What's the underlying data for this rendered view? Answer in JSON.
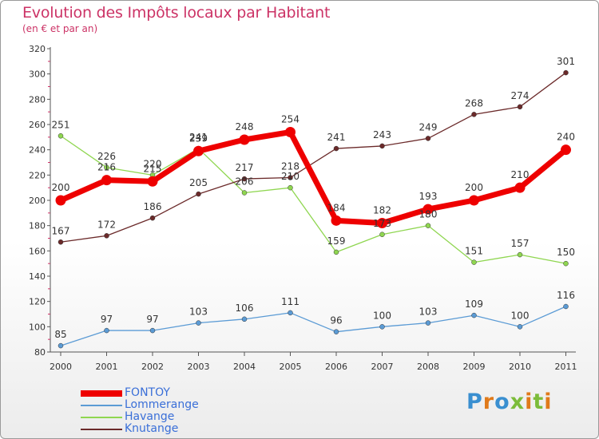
{
  "title": "Evolution des Impôts locaux par Habitant",
  "subtitle": "(en € et par an)",
  "logo": {
    "text": "Proxiti"
  },
  "chart_data": {
    "type": "line",
    "x": [
      "2000",
      "2001",
      "2002",
      "2003",
      "2004",
      "2005",
      "2006",
      "2007",
      "2008",
      "2009",
      "2010",
      "2011"
    ],
    "ylim": [
      80,
      320
    ],
    "yticks": [
      80,
      100,
      120,
      140,
      160,
      180,
      200,
      220,
      240,
      260,
      280,
      300,
      320
    ],
    "grid": false,
    "legend": "bottom-left",
    "series": [
      {
        "name": "FONTOY",
        "color": "#ee0000",
        "values": [
          200,
          216,
          215,
          239,
          248,
          254,
          184,
          182,
          193,
          200,
          210,
          240
        ],
        "labels": [
          "200",
          "216",
          "215",
          "239",
          "248",
          "254",
          "184",
          "182",
          "193",
          "200",
          "210",
          "240"
        ]
      },
      {
        "name": "Lommerange",
        "color": "#5b9bd5",
        "values": [
          85,
          97,
          97,
          103,
          106,
          111,
          96,
          100,
          103,
          109,
          100,
          116
        ],
        "labels": [
          "85",
          "97",
          "97",
          "103",
          "106",
          "111",
          "96",
          "100",
          "103",
          "109",
          "100",
          "116"
        ]
      },
      {
        "name": "Havange",
        "color": "#8fd650",
        "values": [
          251,
          226,
          220,
          241,
          206,
          210,
          159,
          173,
          180,
          151,
          157,
          150
        ],
        "labels": [
          "251",
          "226",
          "220",
          "241",
          "206",
          "210",
          "159",
          "173",
          "180",
          "151",
          "157",
          "150"
        ]
      },
      {
        "name": "Knutange",
        "color": "#6b2a2a",
        "values": [
          167,
          172,
          186,
          205,
          217,
          218,
          241,
          243,
          249,
          268,
          274,
          301
        ],
        "labels": [
          "167",
          "172",
          "186",
          "205",
          "217",
          "218",
          "241",
          "243",
          "249",
          "268",
          "274",
          "301"
        ]
      }
    ]
  }
}
